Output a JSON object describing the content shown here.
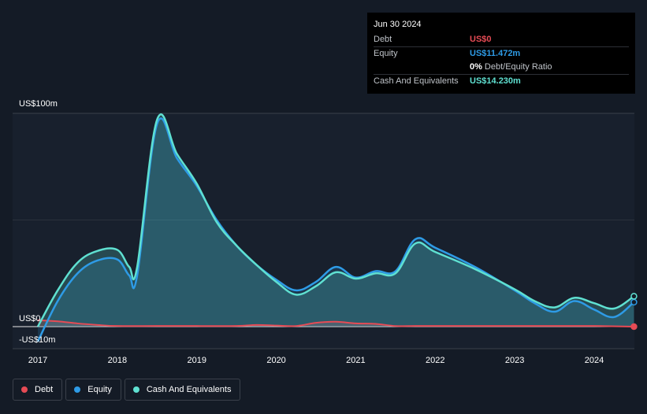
{
  "tooltip": {
    "date": "Jun 30 2024",
    "rows": [
      {
        "label": "Debt",
        "value": "US$0",
        "color": "#e64b55"
      },
      {
        "label": "Equity",
        "value": "US$11.472m",
        "color": "#2e9be6"
      },
      {
        "label": "",
        "value": "0%",
        "extra": "Debt/Equity Ratio",
        "color": "#ffffff"
      },
      {
        "label": "Cash And Equivalents",
        "value": "US$14.230m",
        "color": "#5fe0d1"
      }
    ]
  },
  "legend": [
    {
      "label": "Debt",
      "color": "#e64b55"
    },
    {
      "label": "Equity",
      "color": "#2e9be6"
    },
    {
      "label": "Cash And Equivalents",
      "color": "#5fe0d1"
    }
  ],
  "chart_data": {
    "type": "area",
    "title": "",
    "xlabel": "",
    "ylabel": "",
    "y_tick_labels": [
      "US$100m",
      "US$0",
      "-US$10m"
    ],
    "x_tick_labels": [
      "2017",
      "2018",
      "2019",
      "2020",
      "2021",
      "2022",
      "2023",
      "2024"
    ],
    "ylim": [
      -10,
      100
    ],
    "xlim": [
      2017.0,
      2024.5
    ],
    "grid": true,
    "legend_position": "bottom-left",
    "series": [
      {
        "name": "Debt",
        "color": "#e64b55",
        "x": [
          2017.0,
          2017.25,
          2017.5,
          2017.75,
          2018.0,
          2018.5,
          2019.0,
          2019.5,
          2019.75,
          2020.0,
          2020.25,
          2020.5,
          2020.75,
          2021.0,
          2021.25,
          2021.5,
          2021.75,
          2022.0,
          2022.5,
          2023.0,
          2023.5,
          2024.0,
          2024.5
        ],
        "values": [
          3.0,
          2.5,
          1.5,
          0.8,
          0.3,
          0.3,
          0.3,
          0.3,
          0.8,
          0.5,
          0.3,
          1.8,
          2.3,
          1.5,
          1.3,
          0.3,
          0.3,
          0.3,
          0.3,
          0.3,
          0.3,
          0.3,
          0.0
        ]
      },
      {
        "name": "Equity",
        "color": "#2e9be6",
        "x": [
          2017.0,
          2017.25,
          2017.5,
          2017.75,
          2018.0,
          2018.15,
          2018.25,
          2018.5,
          2018.75,
          2019.0,
          2019.25,
          2019.5,
          2019.75,
          2020.0,
          2020.25,
          2020.5,
          2020.75,
          2021.0,
          2021.25,
          2021.5,
          2021.75,
          2022.0,
          2022.5,
          2023.0,
          2023.25,
          2023.5,
          2023.75,
          2024.0,
          2024.25,
          2024.5
        ],
        "values": [
          -7.0,
          12.0,
          25.0,
          31.0,
          31.5,
          24.0,
          24.0,
          95.0,
          79.0,
          66.0,
          50.0,
          38.0,
          29.0,
          22.0,
          17.0,
          21.0,
          28.0,
          23.0,
          26.0,
          26.0,
          41.0,
          37.0,
          28.0,
          17.0,
          11.0,
          7.0,
          12.0,
          8.0,
          4.5,
          11.472
        ]
      },
      {
        "name": "Cash And Equivalents",
        "color": "#5fe0d1",
        "x": [
          2017.0,
          2017.25,
          2017.5,
          2017.75,
          2018.0,
          2018.15,
          2018.25,
          2018.5,
          2018.75,
          2019.0,
          2019.25,
          2019.5,
          2019.75,
          2020.0,
          2020.25,
          2020.5,
          2020.75,
          2021.0,
          2021.25,
          2021.5,
          2021.75,
          2022.0,
          2022.5,
          2023.0,
          2023.25,
          2023.5,
          2023.75,
          2024.0,
          2024.25,
          2024.5
        ],
        "values": [
          0.0,
          17.0,
          30.0,
          35.5,
          36.0,
          28.0,
          28.0,
          97.0,
          81.0,
          67.0,
          49.0,
          38.0,
          29.0,
          21.0,
          15.0,
          19.0,
          25.5,
          22.5,
          25.0,
          25.0,
          39.0,
          35.0,
          27.0,
          17.5,
          12.0,
          9.0,
          13.5,
          11.0,
          8.5,
          14.23
        ]
      }
    ],
    "markers": [
      {
        "series": "Debt",
        "x": 2024.5,
        "y": 0.0
      },
      {
        "series": "Equity",
        "x": 2024.5,
        "y": 11.472
      },
      {
        "series": "Cash And Equivalents",
        "x": 2024.5,
        "y": 14.23
      }
    ]
  }
}
